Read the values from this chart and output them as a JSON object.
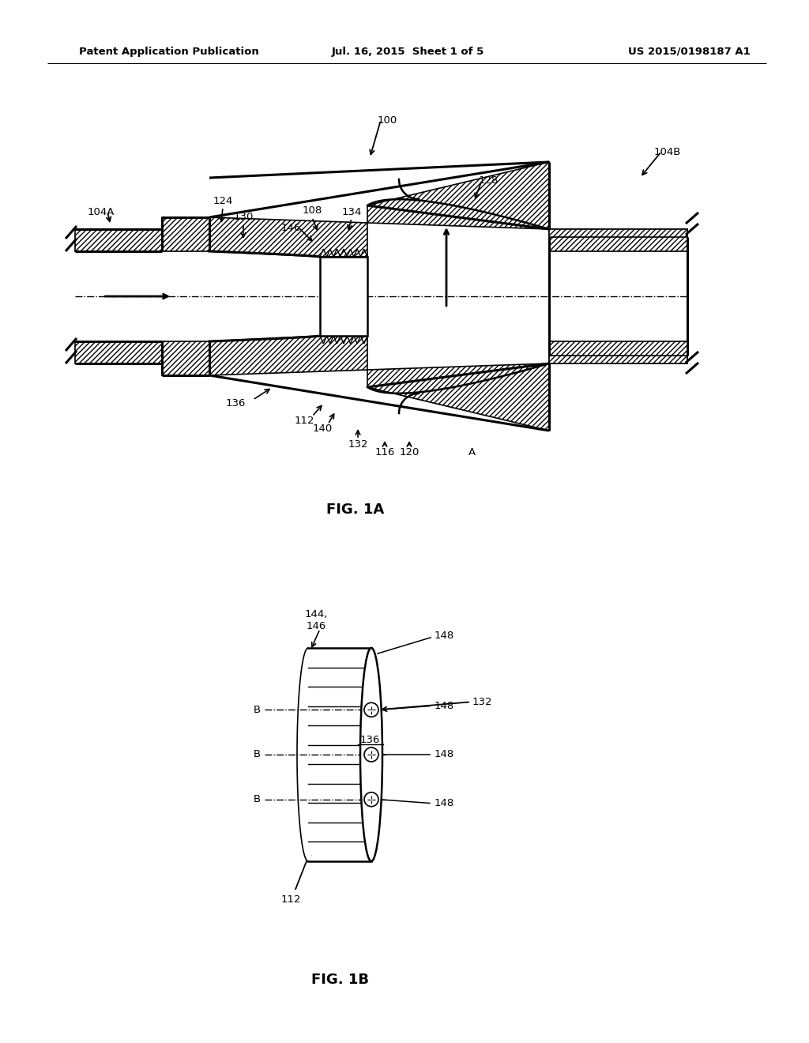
{
  "bg_color": "#ffffff",
  "line_color": "#000000",
  "header_left": "Patent Application Publication",
  "header_mid": "Jul. 16, 2015  Sheet 1 of 5",
  "header_right": "US 2015/0198187 A1",
  "fig1a_label": "FIG. 1A",
  "fig1b_label": "FIG. 1B"
}
